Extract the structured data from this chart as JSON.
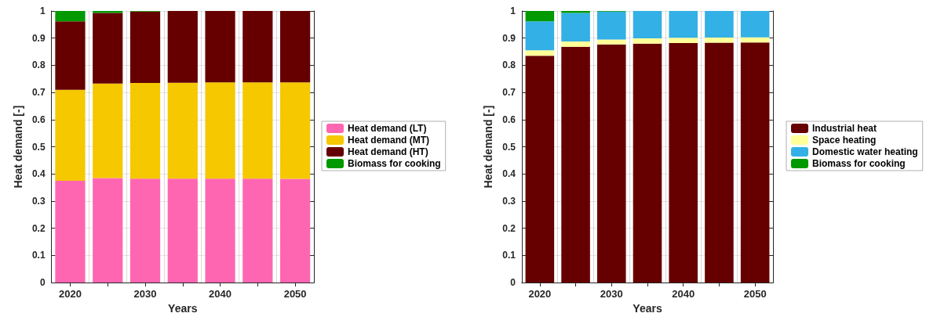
{
  "chart_data": [
    {
      "type": "bar",
      "stacked": true,
      "xlabel": "Years",
      "ylabel": "Heat demand [-]",
      "categories": [
        "2020",
        null,
        "2030",
        null,
        "2040",
        null,
        "2050"
      ],
      "ylim": [
        0,
        1
      ],
      "yticks": [
        0,
        0.1,
        0.2,
        0.3,
        0.4,
        0.5,
        0.6,
        0.7,
        0.8,
        0.9,
        1
      ],
      "grid": true,
      "legend": "right",
      "series": [
        {
          "name": "Heat demand (LT)",
          "color": "#ff66b2",
          "values": [
            0.375,
            0.385,
            0.383,
            0.383,
            0.383,
            0.383,
            0.382
          ]
        },
        {
          "name": "Heat demand (MT)",
          "color": "#f5c800",
          "values": [
            0.335,
            0.348,
            0.352,
            0.353,
            0.354,
            0.354,
            0.355
          ]
        },
        {
          "name": "Heat demand (HT)",
          "color": "#660000",
          "values": [
            0.252,
            0.26,
            0.263,
            0.264,
            0.263,
            0.263,
            0.263
          ]
        },
        {
          "name": "Biomass for cooking",
          "color": "#009900",
          "values": [
            0.038,
            0.007,
            0.002,
            0,
            0,
            0,
            0
          ]
        }
      ]
    },
    {
      "type": "bar",
      "stacked": true,
      "xlabel": "Years",
      "ylabel": "Heat demand [-]",
      "categories": [
        "2020",
        null,
        "2030",
        null,
        "2040",
        null,
        "2050"
      ],
      "ylim": [
        0,
        1
      ],
      "yticks": [
        0,
        0.1,
        0.2,
        0.3,
        0.4,
        0.5,
        0.6,
        0.7,
        0.8,
        0.9,
        1
      ],
      "grid": true,
      "legend": "right",
      "series": [
        {
          "name": "Industrial heat",
          "color": "#660000",
          "values": [
            0.835,
            0.868,
            0.877,
            0.88,
            0.882,
            0.883,
            0.884
          ]
        },
        {
          "name": "Space heating",
          "color": "#ffff99",
          "values": [
            0.02,
            0.02,
            0.018,
            0.019,
            0.019,
            0.019,
            0.019
          ]
        },
        {
          "name": "Domestic water heating",
          "color": "#33b0e5",
          "values": [
            0.107,
            0.105,
            0.103,
            0.101,
            0.099,
            0.098,
            0.097
          ]
        },
        {
          "name": "Biomass for cooking",
          "color": "#009900",
          "values": [
            0.038,
            0.007,
            0.002,
            0,
            0,
            0,
            0
          ]
        }
      ]
    }
  ]
}
